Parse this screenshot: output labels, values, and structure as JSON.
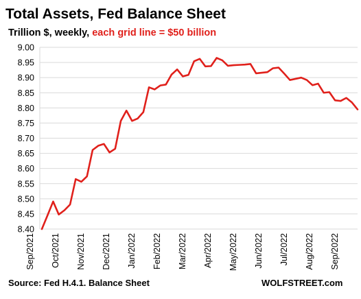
{
  "header": {
    "title": "Total Assets, Fed Balance Sheet",
    "subtitle_black": "Trillion $, weekly, ",
    "subtitle_red": "each grid line = $50 billion"
  },
  "footer": {
    "source": "Source: Fed H.4.1. Balance Sheet",
    "brand": "WOLFSTREET.com"
  },
  "colors": {
    "line": "#e0201b",
    "grid": "#d9d9d9",
    "highlight_text": "#e0201b"
  },
  "chart_data": {
    "type": "line",
    "title": "Total Assets, Fed Balance Sheet",
    "subtitle": "Trillion $, weekly, each grid line = $50 billion",
    "xlabel": "",
    "ylabel": "",
    "ylim": [
      8.4,
      9.0
    ],
    "y_ticks": [
      "8.40",
      "8.45",
      "8.50",
      "8.55",
      "8.60",
      "8.65",
      "8.70",
      "8.75",
      "8.80",
      "8.85",
      "8.90",
      "8.95",
      "9.00"
    ],
    "x_ticks": [
      "Sep/2021",
      "Oct/2021",
      "Nov/2021",
      "Dec/2021",
      "Jan/2022",
      "Feb/2022",
      "Mar/2022",
      "Apr/2022",
      "May/2022",
      "Jun/2022",
      "Jul/2022",
      "Aug/2022",
      "Sep/2022"
    ],
    "grid": true,
    "legend": "none",
    "series": [
      {
        "values": [
          8.4,
          8.445,
          8.491,
          8.448,
          8.462,
          8.481,
          8.565,
          8.556,
          8.574,
          8.661,
          8.675,
          8.681,
          8.653,
          8.665,
          8.757,
          8.791,
          8.757,
          8.765,
          8.786,
          8.868,
          8.861,
          8.874,
          8.877,
          8.91,
          8.927,
          8.904,
          8.909,
          8.954,
          8.962,
          8.937,
          8.938,
          8.965,
          8.957,
          8.939,
          8.941,
          8.942,
          8.943,
          8.945,
          8.914,
          8.916,
          8.918,
          8.931,
          8.933,
          8.913,
          8.892,
          8.896,
          8.9,
          8.892,
          8.875,
          8.88,
          8.85,
          8.852,
          8.825,
          8.823,
          8.833,
          8.818,
          8.795
        ]
      }
    ]
  }
}
